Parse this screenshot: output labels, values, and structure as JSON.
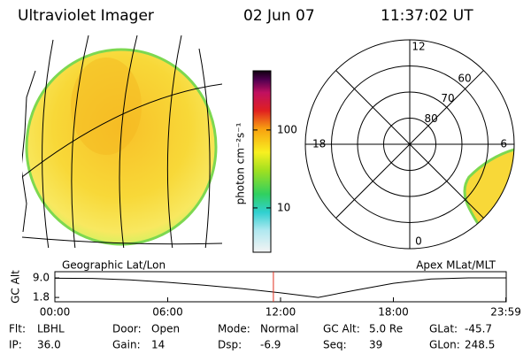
{
  "header": {
    "title": "Ultraviolet Imager",
    "date": "02 Jun 07",
    "time": "11:37:02 UT"
  },
  "colorbar": {
    "label": "photon cm⁻²s⁻¹",
    "log": true,
    "lim": [
      2.7,
      575
    ],
    "ticks": [
      10,
      100
    ]
  },
  "polar": {
    "lat_rings": [
      80,
      70,
      60
    ],
    "lat_edge": 50,
    "mlt_labels": [
      12,
      18,
      6,
      0
    ]
  },
  "panel_labels": {
    "left": "Geographic Lat/Lon",
    "right": "Apex MLat/MLT"
  },
  "altitude": {
    "ylabel": "GC Alt",
    "ylim": [
      0.2,
      11.3
    ],
    "yticks": [
      {
        "value": 9,
        "label": "9.0"
      },
      {
        "value": 1.8,
        "label": "1.8"
      }
    ],
    "xlim": [
      0,
      24
    ],
    "xticks": [
      {
        "value": 0,
        "label": "00:00"
      },
      {
        "value": 6,
        "label": "06:00"
      },
      {
        "value": 12,
        "label": "12:00"
      },
      {
        "value": 18,
        "label": "18:00"
      },
      {
        "value": 23.98,
        "label": "23:59"
      }
    ],
    "x": [
      0,
      2,
      4,
      6,
      8,
      10,
      12,
      14,
      16,
      18,
      20,
      22,
      23.98
    ],
    "values": [
      8.9,
      8.8,
      8.3,
      7.4,
      6.3,
      5.0,
      3.5,
      1.8,
      4.5,
      7.0,
      8.6,
      9.0,
      9.0
    ],
    "marker_x": 11.62,
    "marker_color": "#e03020"
  },
  "footer": {
    "rows": [
      [
        {
          "label": "Flt:",
          "value": "LBHL"
        },
        {
          "label": "Door:",
          "value": "Open"
        },
        {
          "label": "Mode:",
          "value": "Normal"
        },
        {
          "label": "GC Alt:",
          "value": "5.0 Re"
        },
        {
          "label": "GLat:",
          "value": "-45.7"
        }
      ],
      [
        {
          "label": "IP:",
          "value": "36.0"
        },
        {
          "label": "Gain:",
          "value": "14"
        },
        {
          "label": "Dsp:",
          "value": "-6.9"
        },
        {
          "label": "Seq:",
          "value": "39"
        },
        {
          "label": "GLon:",
          "value": "248.5"
        }
      ]
    ]
  }
}
